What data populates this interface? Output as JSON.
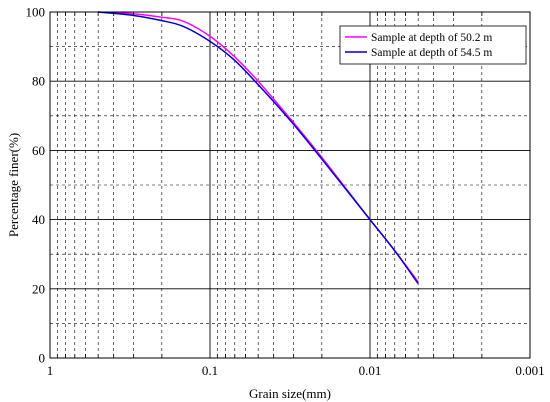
{
  "chart_data": {
    "type": "line",
    "xlabel": "Grain size(mm)",
    "ylabel": "Percentage finer(%)",
    "x_scale": "log",
    "x_reversed": true,
    "xlim": [
      1,
      0.001
    ],
    "ylim": [
      0,
      100
    ],
    "x_ticks": [
      1,
      0.1,
      0.01,
      0.001
    ],
    "x_tick_labels": [
      "1",
      "0.1",
      "0.01",
      "0.001"
    ],
    "y_ticks": [
      0,
      20,
      40,
      60,
      80,
      100
    ],
    "y_tick_labels": [
      "0",
      "20",
      "40",
      "60",
      "80",
      "100"
    ],
    "grid": "major solid, minor dashed",
    "legend_position": "top-right",
    "series": [
      {
        "name": "Sample at depth of 50.2 m",
        "color": "#ff00ff",
        "x": [
          0.5,
          0.3,
          0.2,
          0.15,
          0.1,
          0.07,
          0.05,
          0.03,
          0.02,
          0.01,
          0.007,
          0.005
        ],
        "y": [
          100,
          99.5,
          98.5,
          97.5,
          93,
          87,
          80,
          68,
          58,
          40,
          31,
          22
        ]
      },
      {
        "name": "Sample at depth of 54.5 m",
        "color": "#0000cc",
        "x": [
          0.5,
          0.3,
          0.2,
          0.15,
          0.1,
          0.07,
          0.05,
          0.03,
          0.02,
          0.01,
          0.007,
          0.005
        ],
        "y": [
          100,
          99,
          97.5,
          96,
          91.5,
          86,
          79,
          67.5,
          57.5,
          40,
          31,
          21.5
        ]
      }
    ]
  }
}
